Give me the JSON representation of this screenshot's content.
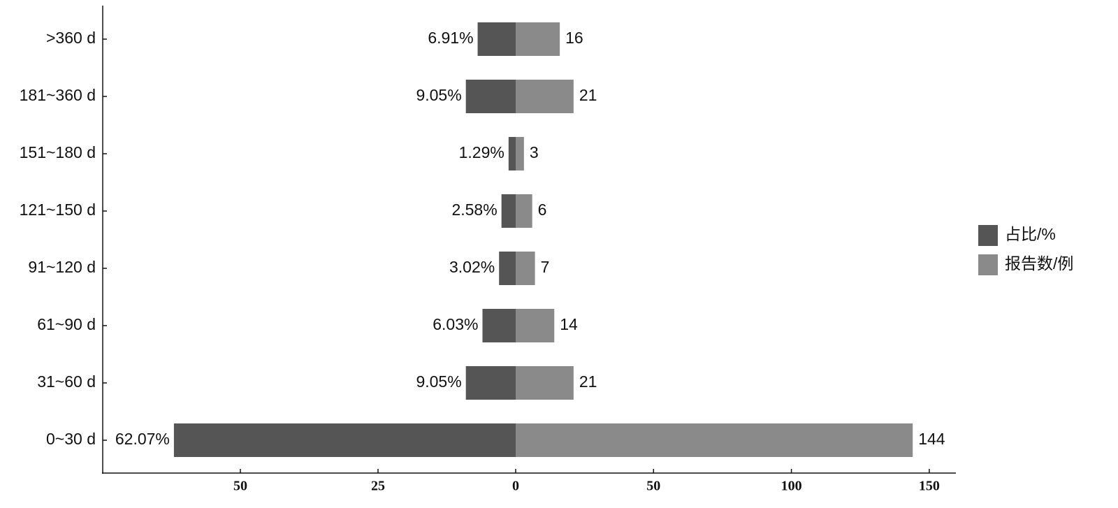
{
  "chart_data": {
    "type": "diverging-bar",
    "categories": [
      "0~30 d",
      "31~60 d",
      "61~90 d",
      "91~120 d",
      "121~150 d",
      "151~180 d",
      "181~360 d",
      ">360 d"
    ],
    "series": [
      {
        "name": "占比/%",
        "color": "#555555",
        "axis": "x2",
        "values": [
          -62.07,
          -9.05,
          -6.03,
          -3.02,
          -2.58,
          -1.29,
          -9.05,
          -6.91
        ],
        "value_labels": [
          "62.07%",
          "9.05%",
          "6.03%",
          "3.02%",
          "2.58%",
          "1.29%",
          "9.05%",
          "6.91%"
        ]
      },
      {
        "name": "报告数/例",
        "color": "#8a8a8a",
        "axis": "x",
        "values": [
          144,
          21,
          14,
          7,
          6,
          3,
          21,
          16
        ]
      }
    ],
    "x2lim": [
      -75,
      0
    ],
    "x2ticks": [
      {
        "value": -50,
        "label": "50"
      },
      {
        "value": -25,
        "label": "25"
      }
    ],
    "xlim": [
      0,
      159.4
    ],
    "xticks": [
      0,
      50,
      100,
      150
    ],
    "legend": "right"
  }
}
